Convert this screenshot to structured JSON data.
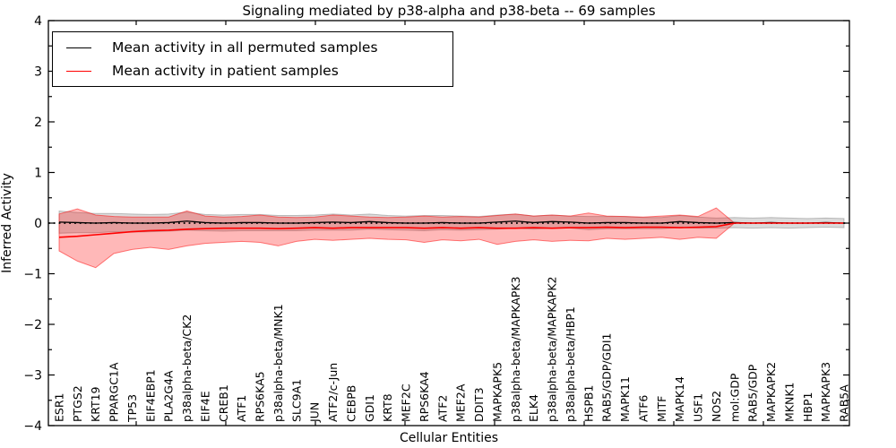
{
  "chart_data": {
    "type": "line",
    "title": "Signaling mediated by p38-alpha and p38-beta -- 69 samples",
    "xlabel": "Cellular Entities",
    "ylabel": "Inferred Activity",
    "ylim": [
      -4,
      4
    ],
    "yticks": [
      -4,
      -3,
      -2,
      -1,
      0,
      1,
      2,
      3,
      4
    ],
    "ytick_minor_step": 0.5,
    "grid": false,
    "legend_position": "upper left",
    "zero_line": {
      "value": 0,
      "style": "dotted",
      "color": "#000000"
    },
    "categories": [
      "ESR1",
      "PTGS2",
      "KRT19",
      "PPARGC1A",
      "TP53",
      "EIF4EBP1",
      "PLA2G4A",
      "p38alpha-beta/CK2",
      "EIF4E",
      "CREB1",
      "ATF1",
      "RPS6KA5",
      "p38alpha-beta/MNK1",
      "SLC9A1",
      "JUN",
      "ATF2/c-Jun",
      "CEBPB",
      "GDI1",
      "KRT8",
      "MEF2C",
      "RPS6KA4",
      "ATF2",
      "MEF2A",
      "DDIT3",
      "MAPKAPK5",
      "p38alpha-beta/MAPKAPK3",
      "ELK4",
      "p38alpha-beta/MAPKAPK2",
      "p38alpha-beta/HBP1",
      "HSPB1",
      "RAB5/GDP/GDI1",
      "MAPK11",
      "ATF6",
      "MITF",
      "MAPK14",
      "USF1",
      "NOS2",
      "mol:GDP",
      "RAB5/GDP",
      "MAPKAPK2",
      "MKNK1",
      "HBP1",
      "MAPKAPK3",
      "RAB5A"
    ],
    "legend": [
      {
        "label": "Mean activity in all permuted samples",
        "color": "#000000"
      },
      {
        "label": "Mean activity in patient samples",
        "color": "#ff0000"
      }
    ],
    "series": [
      {
        "name": "Mean activity in all permuted samples",
        "color": "#000000",
        "width": 1.3,
        "values": [
          0.02,
          0.01,
          0.0,
          0.01,
          0.0,
          0.0,
          0.01,
          0.04,
          0.01,
          0.0,
          0.01,
          0.01,
          0.0,
          0.0,
          0.01,
          0.02,
          0.01,
          0.03,
          0.01,
          0.0,
          0.0,
          0.01,
          0.0,
          0.0,
          0.02,
          0.04,
          0.01,
          0.03,
          0.02,
          0.0,
          0.01,
          0.01,
          0.0,
          0.0,
          0.03,
          0.01,
          0.0,
          0.01,
          0.0,
          0.01,
          0.0,
          0.0,
          0.01,
          0.0
        ]
      },
      {
        "name": "Mean activity in patient samples",
        "color": "#ff0000",
        "width": 1.6,
        "values": [
          -0.28,
          -0.26,
          -0.23,
          -0.2,
          -0.17,
          -0.15,
          -0.14,
          -0.12,
          -0.11,
          -0.1,
          -0.1,
          -0.1,
          -0.11,
          -0.1,
          -0.09,
          -0.1,
          -0.09,
          -0.09,
          -0.09,
          -0.09,
          -0.1,
          -0.09,
          -0.1,
          -0.09,
          -0.1,
          -0.1,
          -0.09,
          -0.1,
          -0.09,
          -0.09,
          -0.08,
          -0.09,
          -0.08,
          -0.08,
          -0.09,
          -0.08,
          -0.07,
          0.0,
          0.0,
          0.0,
          0.0,
          0.0,
          0.0,
          0.0
        ]
      }
    ],
    "bands": [
      {
        "name": "permuted-samples-band",
        "fill": "rgba(0,0,0,0.14)",
        "stroke": "rgba(0,0,0,0.22)",
        "upper": [
          0.24,
          0.21,
          0.19,
          0.19,
          0.18,
          0.17,
          0.18,
          0.22,
          0.17,
          0.16,
          0.17,
          0.17,
          0.15,
          0.15,
          0.16,
          0.18,
          0.16,
          0.18,
          0.15,
          0.14,
          0.15,
          0.15,
          0.14,
          0.13,
          0.16,
          0.18,
          0.14,
          0.16,
          0.14,
          0.13,
          0.13,
          0.13,
          0.11,
          0.11,
          0.15,
          0.12,
          0.1,
          0.11,
          0.1,
          0.11,
          0.1,
          0.09,
          0.1,
          0.09
        ],
        "lower": [
          -0.2,
          -0.19,
          -0.19,
          -0.17,
          -0.18,
          -0.17,
          -0.16,
          -0.14,
          -0.15,
          -0.16,
          -0.15,
          -0.15,
          -0.15,
          -0.15,
          -0.14,
          -0.14,
          -0.14,
          -0.12,
          -0.13,
          -0.14,
          -0.15,
          -0.13,
          -0.14,
          -0.13,
          -0.12,
          -0.1,
          -0.12,
          -0.1,
          -0.1,
          -0.13,
          -0.11,
          -0.11,
          -0.11,
          -0.11,
          -0.09,
          -0.1,
          -0.1,
          -0.09,
          -0.1,
          -0.09,
          -0.1,
          -0.09,
          -0.08,
          -0.09
        ]
      },
      {
        "name": "patient-samples-band",
        "fill": "rgba(255,0,0,0.28)",
        "stroke": "rgba(255,0,0,0.5)",
        "upper": [
          0.18,
          0.28,
          0.16,
          0.13,
          0.12,
          0.12,
          0.12,
          0.24,
          0.14,
          0.12,
          0.13,
          0.16,
          0.12,
          0.11,
          0.12,
          0.16,
          0.14,
          0.12,
          0.11,
          0.12,
          0.14,
          0.12,
          0.13,
          0.12,
          0.15,
          0.18,
          0.14,
          0.16,
          0.14,
          0.2,
          0.14,
          0.13,
          0.12,
          0.14,
          0.16,
          0.13,
          0.3,
          0.0,
          0.0,
          0.0,
          0.0,
          0.0,
          0.0,
          0.0
        ],
        "lower": [
          -0.55,
          -0.75,
          -0.88,
          -0.6,
          -0.52,
          -0.48,
          -0.52,
          -0.45,
          -0.4,
          -0.38,
          -0.36,
          -0.38,
          -0.45,
          -0.36,
          -0.32,
          -0.34,
          -0.32,
          -0.3,
          -0.32,
          -0.33,
          -0.38,
          -0.33,
          -0.35,
          -0.32,
          -0.42,
          -0.36,
          -0.33,
          -0.36,
          -0.34,
          -0.35,
          -0.3,
          -0.32,
          -0.3,
          -0.28,
          -0.32,
          -0.28,
          -0.3,
          0.0,
          0.0,
          0.0,
          0.0,
          0.0,
          0.0,
          0.0
        ]
      }
    ]
  }
}
